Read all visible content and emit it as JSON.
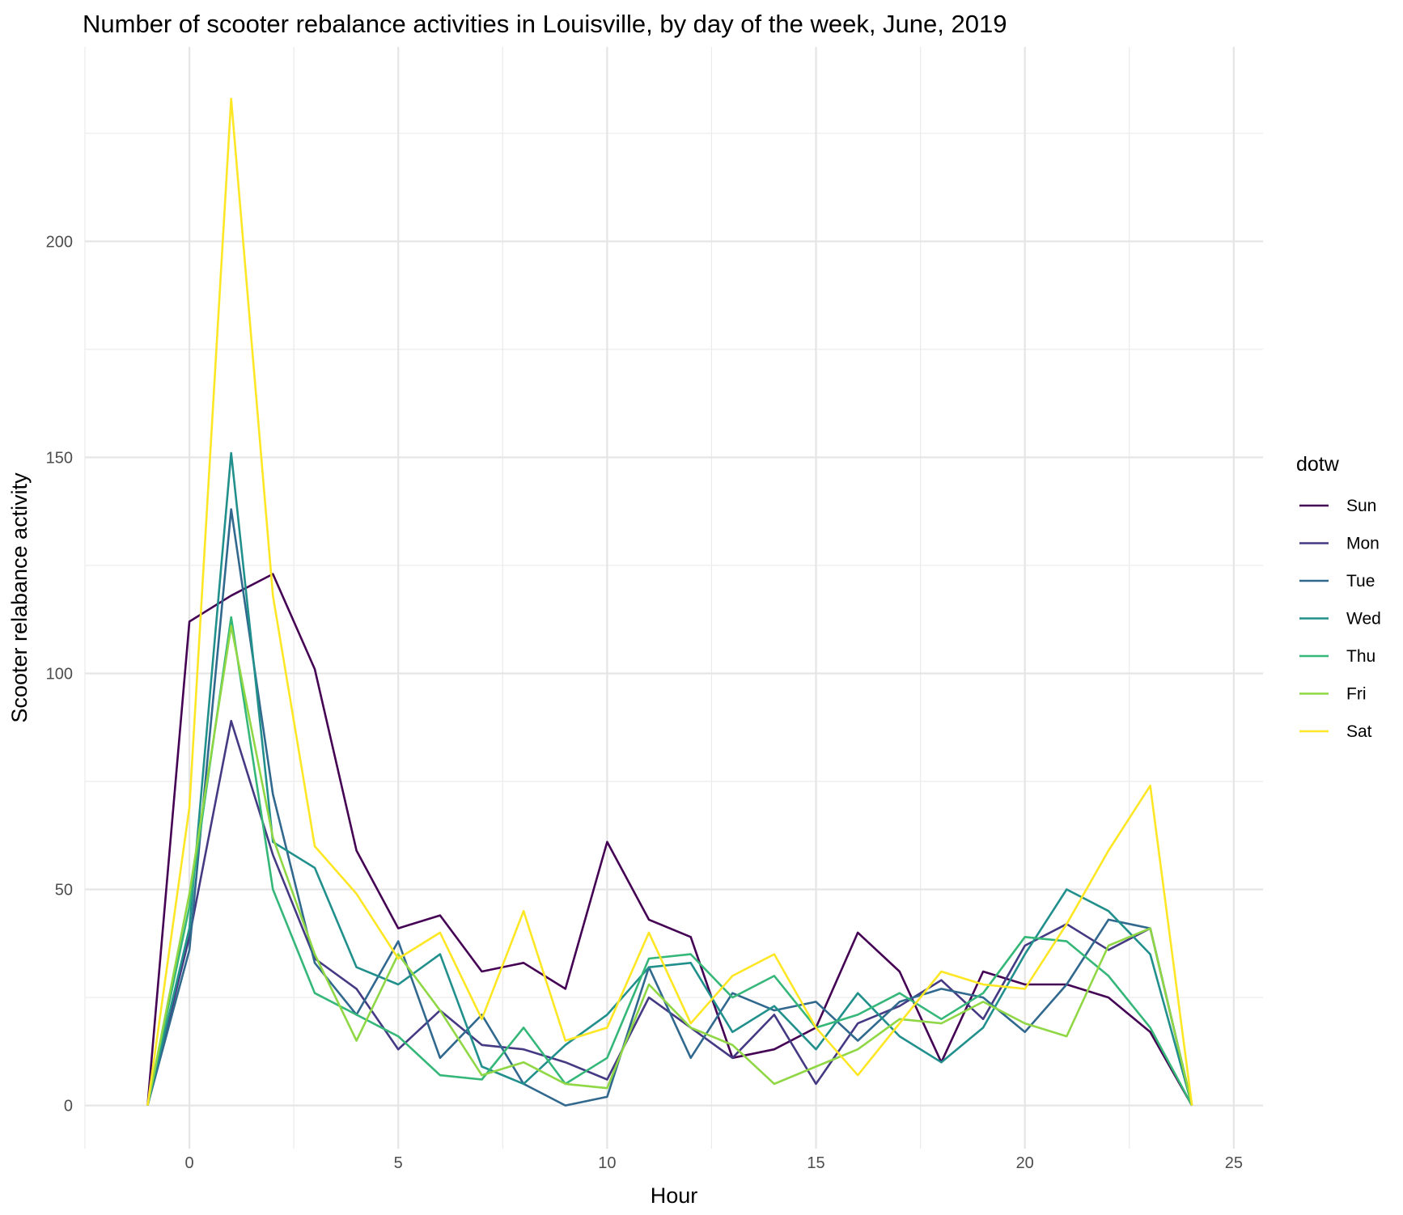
{
  "chart_data": {
    "type": "line",
    "title": "Number of scooter rebalance activities in Louisville, by day of the week, June, 2019",
    "xlabel": "Hour",
    "ylabel": "Scooter relabance activity",
    "xlim": [
      -2.5,
      25.7
    ],
    "ylim": [
      -10,
      245
    ],
    "x_ticks": [
      0,
      5,
      10,
      15,
      20,
      25
    ],
    "y_ticks": [
      0,
      50,
      100,
      150,
      200
    ],
    "grid": true,
    "legend": {
      "title": "dotw",
      "position": "right"
    },
    "x": [
      -1,
      0,
      1,
      2,
      3,
      4,
      5,
      6,
      7,
      8,
      9,
      10,
      11,
      12,
      13,
      14,
      15,
      16,
      17,
      18,
      19,
      20,
      21,
      22,
      23,
      24
    ],
    "series": [
      {
        "name": "Sun",
        "color": "#440154",
        "values": [
          0,
          112,
          118,
          123,
          101,
          59,
          41,
          44,
          31,
          33,
          27,
          61,
          43,
          39,
          11,
          13,
          18,
          40,
          31,
          10,
          31,
          28,
          28,
          25,
          17,
          0
        ]
      },
      {
        "name": "Mon",
        "color": "#443A83",
        "values": [
          0,
          39,
          89,
          58,
          34,
          27,
          13,
          22,
          14,
          13,
          10,
          6,
          25,
          18,
          11,
          21,
          5,
          19,
          23,
          29,
          20,
          37,
          42,
          36,
          41,
          0
        ]
      },
      {
        "name": "Tue",
        "color": "#31688E",
        "values": [
          0,
          36,
          138,
          72,
          33,
          21,
          38,
          11,
          21,
          5,
          0,
          2,
          32,
          11,
          26,
          22,
          24,
          15,
          24,
          27,
          25,
          17,
          28,
          43,
          41,
          0
        ]
      },
      {
        "name": "Wed",
        "color": "#21908C",
        "values": [
          0,
          41,
          151,
          61,
          55,
          32,
          28,
          35,
          9,
          5,
          14,
          21,
          32,
          33,
          17,
          23,
          13,
          26,
          16,
          10,
          18,
          35,
          50,
          45,
          35,
          0
        ]
      },
      {
        "name": "Thu",
        "color": "#35B779",
        "values": [
          0,
          46,
          113,
          50,
          26,
          21,
          16,
          7,
          6,
          18,
          5,
          11,
          34,
          35,
          25,
          30,
          18,
          21,
          26,
          20,
          26,
          39,
          38,
          30,
          18,
          0
        ]
      },
      {
        "name": "Fri",
        "color": "#8FD744",
        "values": [
          0,
          49,
          111,
          62,
          35,
          15,
          35,
          22,
          7,
          10,
          5,
          4,
          28,
          18,
          14,
          5,
          9,
          13,
          20,
          19,
          24,
          19,
          16,
          37,
          41,
          0
        ]
      },
      {
        "name": "Sat",
        "color": "#FDE725",
        "values": [
          0,
          69,
          233,
          118,
          60,
          49,
          34,
          40,
          20,
          45,
          15,
          18,
          40,
          19,
          30,
          35,
          18,
          7,
          19,
          31,
          28,
          27,
          42,
          59,
          74,
          0
        ]
      }
    ]
  }
}
